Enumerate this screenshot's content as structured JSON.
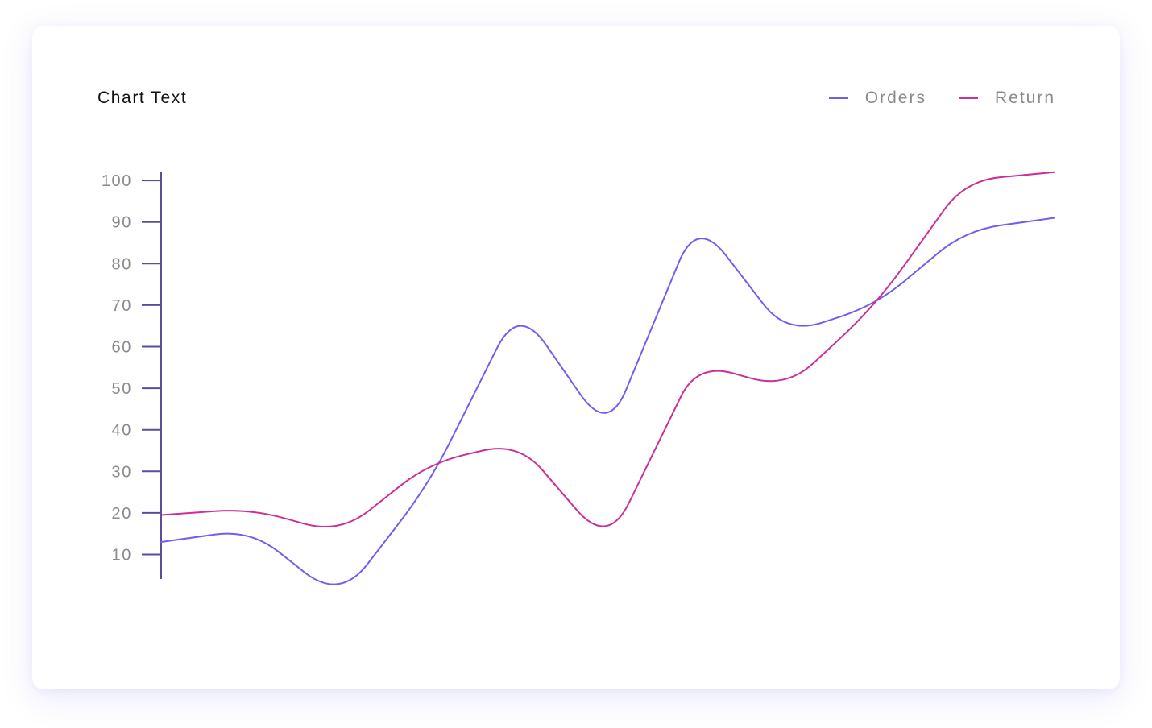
{
  "chart_data": {
    "type": "line",
    "title": "Chart Text",
    "xlabel": "",
    "ylabel": "",
    "ylim": [
      0,
      100
    ],
    "yticks": [
      10,
      20,
      30,
      40,
      50,
      60,
      70,
      80,
      90,
      100
    ],
    "x": [
      0,
      1,
      2,
      3,
      4,
      5,
      6,
      7,
      8,
      9,
      10
    ],
    "grid": false,
    "legend_position": "top-right",
    "series": [
      {
        "name": "Orders",
        "color": "#6f5ff0",
        "values": [
          13,
          16,
          -1,
          27,
          70,
          39,
          91,
          63,
          70,
          88,
          91
        ]
      },
      {
        "name": "Return",
        "color": "#cc2f98",
        "values": [
          19.5,
          21,
          15,
          32,
          37,
          12,
          56,
          50,
          70,
          100,
          102
        ]
      }
    ],
    "axis_color": "#5a4e9a"
  }
}
